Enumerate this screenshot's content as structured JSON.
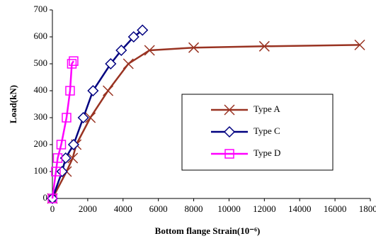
{
  "chart_data": {
    "type": "line",
    "xlabel": "Bottom flange Strain(10⁻⁶)",
    "ylabel": "Load(kN)",
    "xlim": [
      0,
      18000
    ],
    "xticks": [
      0,
      2000,
      4000,
      6000,
      8000,
      10000,
      12000,
      14000,
      16000,
      18000
    ],
    "ylim": [
      0,
      700
    ],
    "yticks": [
      0,
      100,
      200,
      300,
      400,
      500,
      600,
      700
    ],
    "series": [
      {
        "name": "Type A",
        "color": "#993322",
        "marker": "cross",
        "x": [
          0,
          800,
          1150,
          1350,
          2150,
          3150,
          4300,
          5500,
          8000,
          12000,
          17400
        ],
        "values": [
          0,
          100,
          150,
          200,
          300,
          400,
          500,
          550,
          560,
          565,
          570
        ]
      },
      {
        "name": "Type C",
        "color": "#000080",
        "marker": "diamond",
        "x": [
          0,
          550,
          750,
          1200,
          1750,
          2300,
          3300,
          3900,
          4600,
          5100
        ],
        "values": [
          0,
          100,
          150,
          200,
          300,
          400,
          500,
          550,
          600,
          625
        ]
      },
      {
        "name": "Type D",
        "color": "#ff00ff",
        "marker": "square",
        "x": [
          0,
          200,
          300,
          500,
          800,
          1000,
          1100,
          1200
        ],
        "values": [
          0,
          100,
          150,
          200,
          300,
          400,
          500,
          510
        ]
      }
    ]
  }
}
